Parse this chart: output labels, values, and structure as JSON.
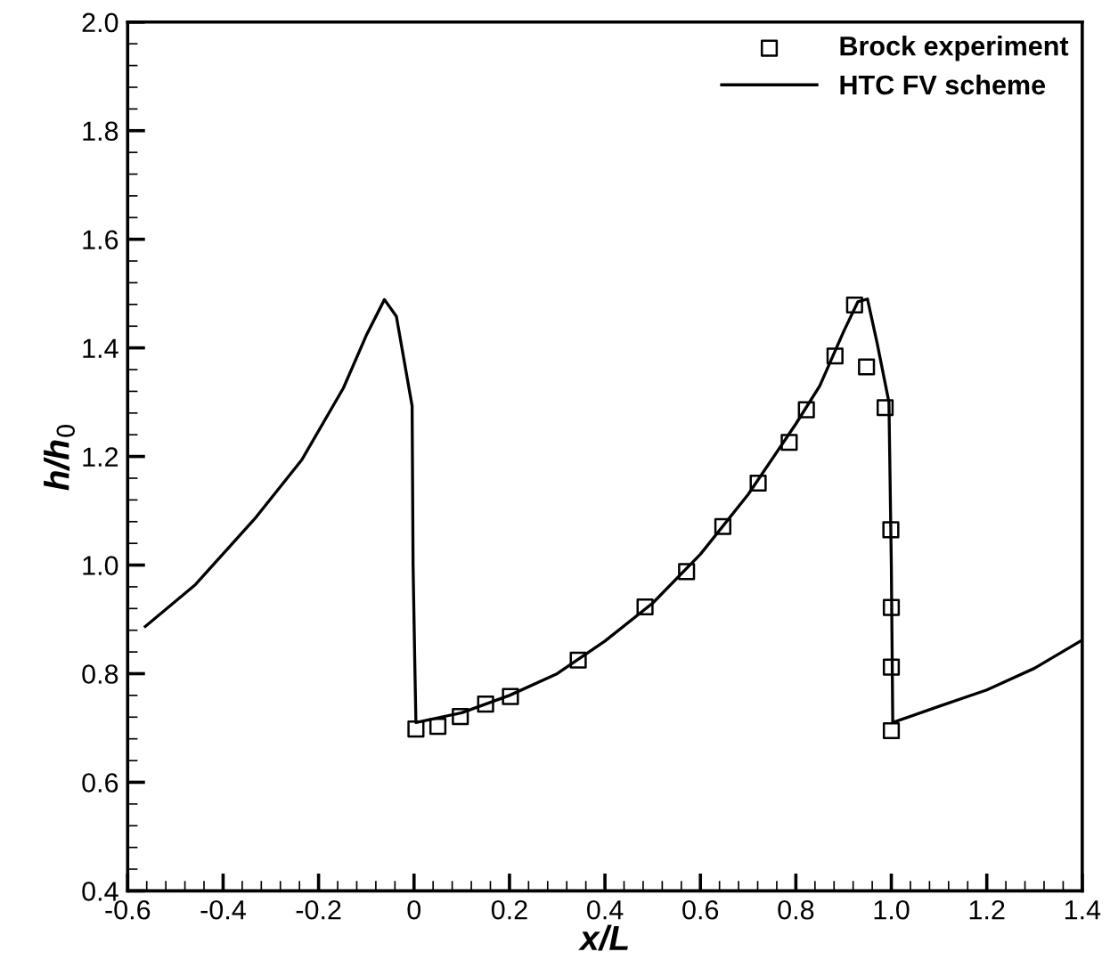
{
  "chart_data": {
    "type": "line",
    "xlabel": "x/L",
    "ylabel": "h/h$_{0}$",
    "xlim": [
      -0.6,
      1.4
    ],
    "xticks": [
      -0.6,
      -0.4,
      -0.2,
      0,
      0.2,
      0.4,
      0.6,
      0.8,
      {
        "value": 1.0,
        "label": "1.0"
      },
      1.2,
      1.4
    ],
    "ylim": [
      0.4,
      2.0
    ],
    "yticks": [
      0.4,
      0.6,
      0.8,
      {
        "value": 1.0,
        "label": "1.0"
      },
      1.2,
      1.4,
      1.6,
      1.8,
      {
        "value": 2.0,
        "label": "2.0"
      }
    ],
    "grid": false,
    "legend": "top right",
    "series": [
      {
        "name": "Brock experiment",
        "type": "scatter",
        "marker": "square",
        "color": "#000000",
        "x": [
          0.004,
          0.05,
          0.097,
          0.15,
          0.202,
          0.344,
          0.484,
          0.571,
          0.647,
          0.721,
          0.786,
          0.822,
          0.882,
          0.923,
          0.948,
          0.987,
          0.999,
          1.0,
          1.0,
          1.0
        ],
        "values": [
          0.698,
          0.703,
          0.721,
          0.744,
          0.758,
          0.825,
          0.923,
          0.988,
          1.071,
          1.151,
          1.226,
          1.286,
          1.385,
          1.479,
          1.365,
          1.29,
          1.065,
          0.922,
          0.812,
          0.695
        ]
      },
      {
        "name": "HTC FV scheme",
        "marker": "none",
        "line_style": "solid",
        "color": "#000000",
        "x": [
          -0.563,
          -0.458,
          -0.334,
          -0.235,
          -0.148,
          -0.099,
          -0.062,
          -0.037,
          -0.004,
          -0.002,
          0.002,
          0.004,
          0.1,
          0.2,
          0.3,
          0.4,
          0.5,
          0.6,
          0.7,
          0.8,
          0.85,
          0.9,
          0.93,
          0.95,
          0.97,
          0.995,
          1.0,
          1.003,
          1.1,
          1.2,
          1.3,
          1.4
        ],
        "values": [
          0.887,
          0.964,
          1.085,
          1.194,
          1.326,
          1.425,
          1.489,
          1.458,
          1.293,
          1.0,
          0.8,
          0.71,
          0.728,
          0.76,
          0.8,
          0.86,
          0.93,
          1.02,
          1.13,
          1.26,
          1.33,
          1.43,
          1.485,
          1.49,
          1.41,
          1.3,
          1.0,
          0.71,
          0.74,
          0.77,
          0.81,
          0.862
        ]
      }
    ]
  }
}
